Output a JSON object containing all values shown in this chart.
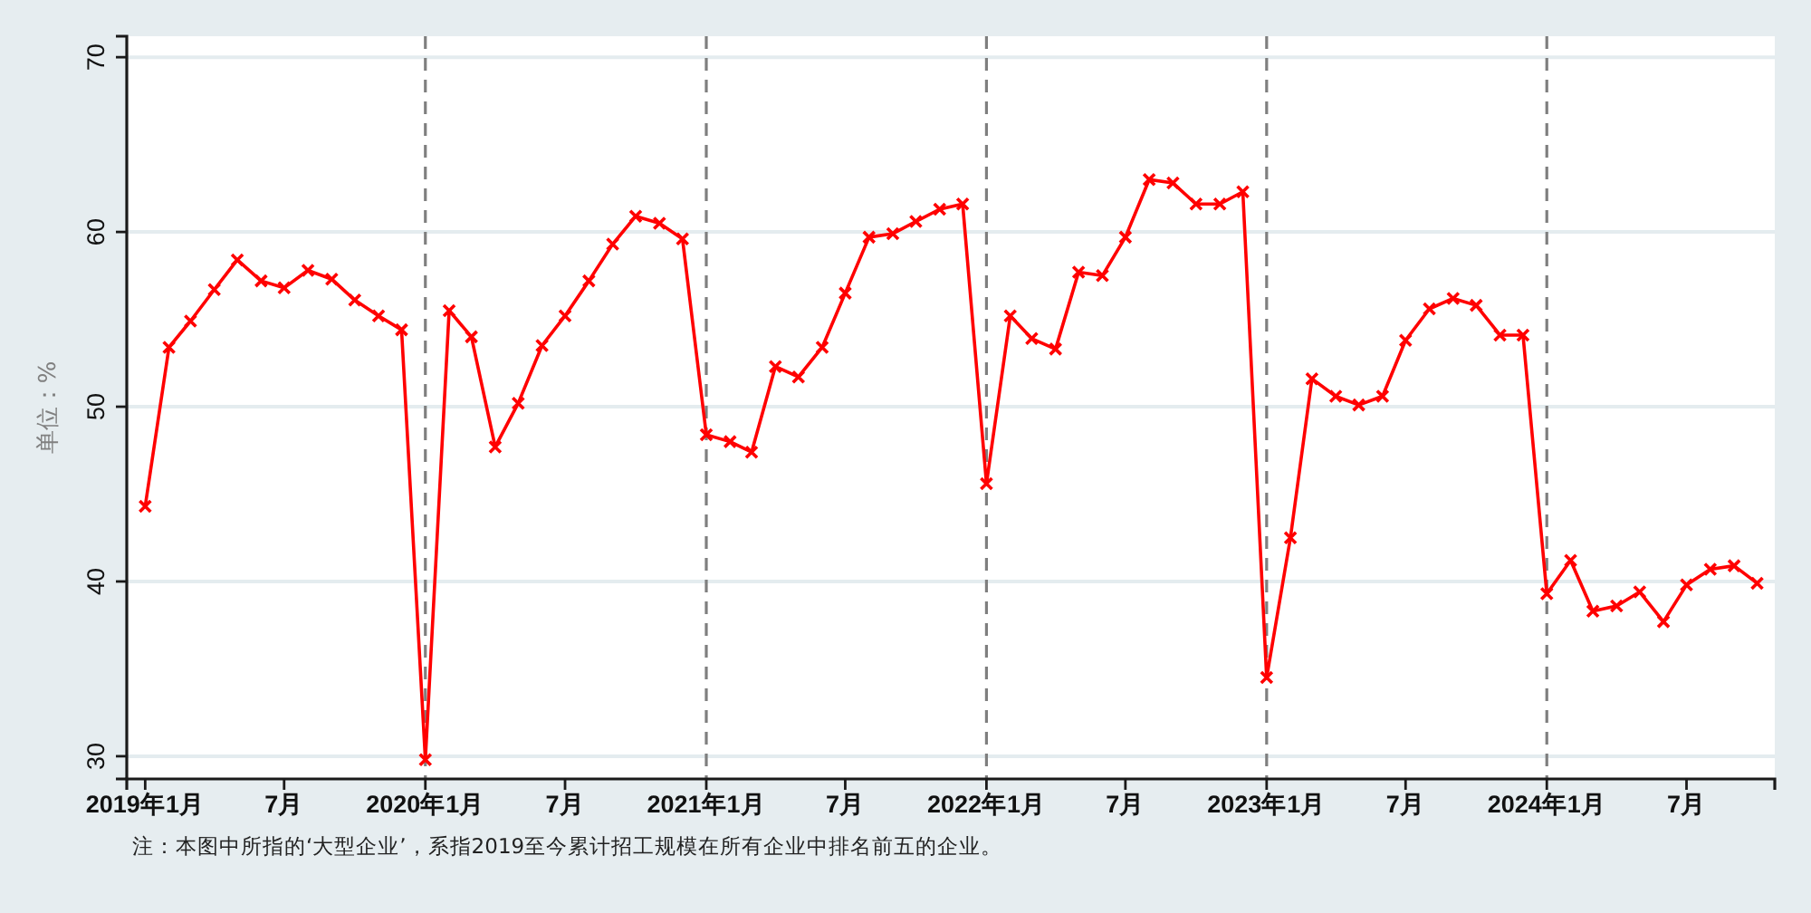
{
  "chart_data": {
    "type": "line",
    "ylabel": "单位：%",
    "annotations": [
      "注：本图中所指的‘大型企业’，系指2019至今累计招工规模在所有企业中排名前五的企业。"
    ],
    "x": [
      "2019-01",
      "2019-02",
      "2019-03",
      "2019-04",
      "2019-05",
      "2019-06",
      "2019-07",
      "2019-08",
      "2019-09",
      "2019-10",
      "2019-11",
      "2019-12",
      "2020-01",
      "2020-02",
      "2020-03",
      "2020-04",
      "2020-05",
      "2020-06",
      "2020-07",
      "2020-08",
      "2020-09",
      "2020-10",
      "2020-11",
      "2020-12",
      "2021-01",
      "2021-02",
      "2021-03",
      "2021-04",
      "2021-05",
      "2021-06",
      "2021-07",
      "2021-08",
      "2021-09",
      "2021-10",
      "2021-11",
      "2021-12",
      "2022-01",
      "2022-02",
      "2022-03",
      "2022-04",
      "2022-05",
      "2022-06",
      "2022-07",
      "2022-08",
      "2022-09",
      "2022-10",
      "2022-11",
      "2022-12",
      "2023-01",
      "2023-02",
      "2023-03",
      "2023-04",
      "2023-05",
      "2023-06",
      "2023-07",
      "2023-08",
      "2023-09",
      "2023-10",
      "2023-11",
      "2023-12",
      "2024-01",
      "2024-02",
      "2024-03",
      "2024-04",
      "2024-05",
      "2024-06",
      "2024-07",
      "2024-08",
      "2024-09",
      "2024-10"
    ],
    "series": [
      {
        "color": "#ff0000",
        "values": [
          44.3,
          53.4,
          54.9,
          56.7,
          58.4,
          57.2,
          56.8,
          57.8,
          57.3,
          56.1,
          55.2,
          54.4,
          29.8,
          55.5,
          54.0,
          47.7,
          50.2,
          53.5,
          55.2,
          57.2,
          59.3,
          60.9,
          60.5,
          59.6,
          48.4,
          48.0,
          47.4,
          52.3,
          51.7,
          53.4,
          56.5,
          59.7,
          59.9,
          60.6,
          61.3,
          61.6,
          45.6,
          55.2,
          53.9,
          53.3,
          57.7,
          57.5,
          59.7,
          63.0,
          62.8,
          61.6,
          61.6,
          62.3,
          34.5,
          42.5,
          51.6,
          50.6,
          50.1,
          50.6,
          53.8,
          55.6,
          56.2,
          55.8,
          54.1,
          54.1,
          39.3,
          41.2,
          38.3,
          38.6,
          39.4,
          37.7,
          39.8,
          40.7,
          40.9,
          39.9
        ]
      }
    ],
    "xlim": [
      "2018-12-08",
      "2024-10-24"
    ],
    "xticks": [
      {
        "value": "2019-01",
        "label": "2019年1月"
      },
      {
        "value": "2019-07",
        "label": "7月"
      },
      {
        "value": "2020-01",
        "label": "2020年1月"
      },
      {
        "value": "2020-07",
        "label": "7月"
      },
      {
        "value": "2021-01",
        "label": "2021年1月"
      },
      {
        "value": "2021-07",
        "label": "7月"
      },
      {
        "value": "2022-01",
        "label": "2022年1月"
      },
      {
        "value": "2022-07",
        "label": "7月"
      },
      {
        "value": "2023-01",
        "label": "2023年1月"
      },
      {
        "value": "2023-07",
        "label": "7月"
      },
      {
        "value": "2024-01",
        "label": "2024年1月"
      },
      {
        "value": "2024-07",
        "label": "7月"
      }
    ],
    "ylim": [
      28.7,
      71.2
    ],
    "yticks": [
      30,
      40,
      50,
      60,
      70
    ],
    "grid": "y",
    "marker": "cross",
    "line_style": "solid",
    "ref_lines": [
      {
        "axis": "x",
        "value": "2020-01",
        "color": "#7f7f7f",
        "line_style": "dashed"
      },
      {
        "axis": "x",
        "value": "2021-01",
        "color": "#7f7f7f",
        "line_style": "dashed"
      },
      {
        "axis": "x",
        "value": "2022-01",
        "color": "#7f7f7f",
        "line_style": "dashed"
      },
      {
        "axis": "x",
        "value": "2023-01",
        "color": "#7f7f7f",
        "line_style": "dashed"
      },
      {
        "axis": "x",
        "value": "2024-01",
        "color": "#7f7f7f",
        "line_style": "dashed"
      }
    ]
  }
}
